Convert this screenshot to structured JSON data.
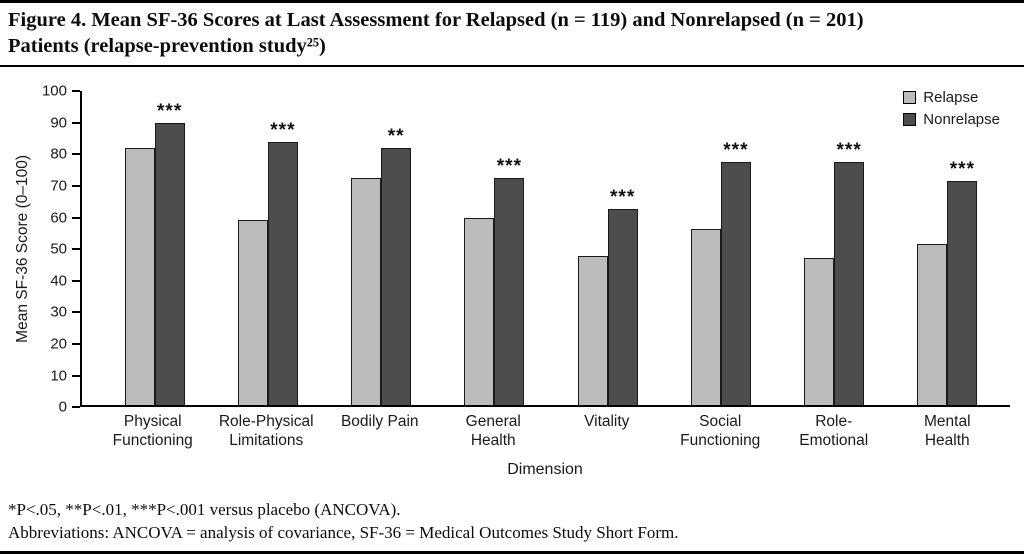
{
  "title": {
    "line1": "Figure 4. Mean SF-36 Scores at Last Assessment for Relapsed (n = 119) and Nonrelapsed (n = 201)",
    "line2": "Patients (relapse-prevention study²⁵)"
  },
  "chart_data": {
    "type": "bar",
    "categories": [
      [
        "Physical",
        "Functioning"
      ],
      [
        "Role-Physical",
        "Limitations"
      ],
      [
        "Bodily Pain"
      ],
      [
        "General",
        "Health"
      ],
      [
        "Vitality"
      ],
      [
        "Social",
        "Functioning"
      ],
      [
        "Role-",
        "Emotional"
      ],
      [
        "Mental",
        "Health"
      ]
    ],
    "series": [
      {
        "name": "Relapse",
        "color": "#bcbcbc",
        "values": [
          82,
          59,
          72.5,
          59.5,
          47.5,
          56,
          47,
          51.5
        ]
      },
      {
        "name": "Nonrelapse",
        "color": "#4d4d4d",
        "values": [
          90,
          84,
          82,
          72.5,
          62.5,
          77.5,
          77.5,
          71.5
        ]
      }
    ],
    "significance": [
      "***",
      "***",
      "**",
      "***",
      "***",
      "***",
      "***",
      "***"
    ],
    "ylabel": "Mean SF-36 Score (0–100)",
    "xlabel": "Dimension",
    "ylim": [
      0,
      100
    ],
    "yticks": [
      0,
      10,
      20,
      30,
      40,
      50,
      60,
      70,
      80,
      90,
      100
    ],
    "legend_position": "top-right",
    "grid": false
  },
  "footnotes": {
    "line1": "*P<.05, **P<.01, ***P<.001 versus placebo (ANCOVA).",
    "line2": "Abbreviations: ANCOVA = analysis of covariance, SF-36 = Medical Outcomes Study Short Form."
  }
}
